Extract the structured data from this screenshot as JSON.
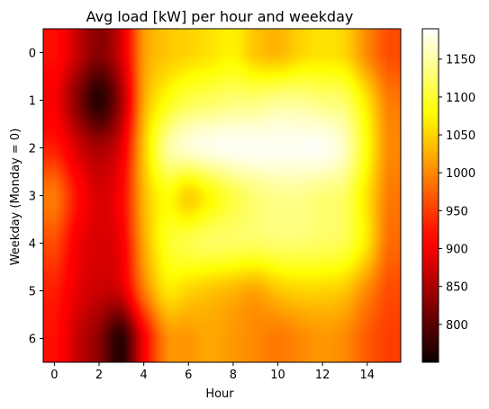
{
  "chart_data": {
    "type": "heatmap",
    "title": "Avg load [kW] per hour and weekday",
    "xlabel": "Hour",
    "ylabel": "Weekday (Monday = 0)",
    "x": [
      0,
      1,
      2,
      3,
      4,
      5,
      6,
      7,
      8,
      9,
      10,
      11,
      12,
      13,
      14,
      15
    ],
    "y": [
      0,
      1,
      2,
      3,
      4,
      5,
      6
    ],
    "xticks": [
      "0",
      "2",
      "4",
      "6",
      "8",
      "10",
      "12",
      "14"
    ],
    "yticks": [
      "0",
      "1",
      "2",
      "3",
      "4",
      "5",
      "6"
    ],
    "xlim": [
      -0.5,
      15.5
    ],
    "ylim": [
      -0.5,
      6.5
    ],
    "interpolation": "smooth",
    "colormap": "hot",
    "colorbar": {
      "vmin": 750,
      "vmax": 1190,
      "ticks": [
        "800",
        "850",
        "900",
        "950",
        "1000",
        "1050",
        "1100",
        "1150"
      ]
    },
    "values": [
      [
        920,
        870,
        830,
        880,
        1010,
        1040,
        1050,
        1060,
        1070,
        1040,
        1030,
        1050,
        1060,
        1050,
        1000,
        960
      ],
      [
        900,
        830,
        770,
        850,
        1020,
        1080,
        1110,
        1120,
        1130,
        1130,
        1140,
        1140,
        1130,
        1120,
        1060,
        990
      ],
      [
        930,
        880,
        850,
        890,
        1040,
        1140,
        1170,
        1180,
        1185,
        1185,
        1185,
        1185,
        1185,
        1160,
        1080,
        1000
      ],
      [
        990,
        920,
        880,
        910,
        1030,
        1080,
        1050,
        1080,
        1110,
        1130,
        1140,
        1140,
        1130,
        1120,
        1060,
        990
      ],
      [
        960,
        900,
        880,
        900,
        1020,
        1090,
        1110,
        1120,
        1120,
        1120,
        1125,
        1125,
        1120,
        1110,
        1060,
        980
      ],
      [
        930,
        890,
        870,
        880,
        990,
        1060,
        1050,
        1040,
        1030,
        1020,
        1040,
        1050,
        1050,
        1040,
        1000,
        960
      ],
      [
        920,
        870,
        830,
        770,
        900,
        1000,
        1010,
        1020,
        1010,
        1000,
        990,
        1000,
        1010,
        1000,
        970,
        950
      ]
    ]
  }
}
